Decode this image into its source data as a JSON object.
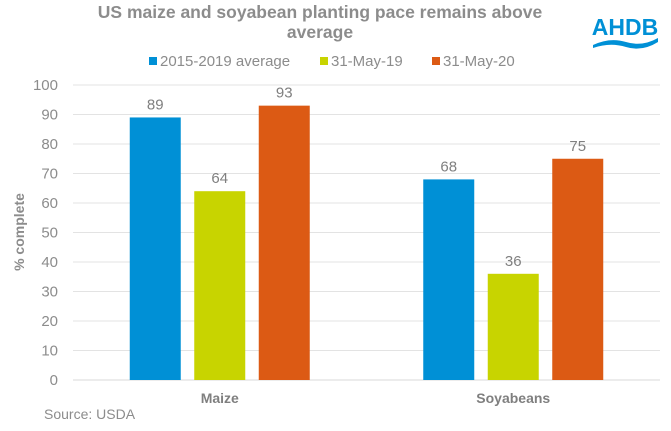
{
  "chart_data": {
    "type": "bar",
    "title": "US maize and soyabean planting pace remains above average",
    "categories": [
      "Maize",
      "Soyabeans"
    ],
    "series": [
      {
        "name": "2015-2019 average",
        "color": "#0090d6",
        "values": [
          89,
          68
        ]
      },
      {
        "name": "31-May-19",
        "color": "#c8d400",
        "values": [
          64,
          36
        ]
      },
      {
        "name": "31-May-20",
        "color": "#dc5a14",
        "values": [
          93,
          75
        ]
      }
    ],
    "xlabel": "",
    "ylabel": "% complete",
    "ylim": [
      0,
      100
    ],
    "yticks": [
      0,
      10,
      20,
      30,
      40,
      50,
      60,
      70,
      80,
      90,
      100
    ],
    "grid": true,
    "legend_position": "top"
  },
  "title_lines": [
    "US maize and soyabean planting pace remains above",
    "average"
  ],
  "logo": {
    "text": "AHDB",
    "color": "#0090d6"
  },
  "source": "Source: USDA"
}
